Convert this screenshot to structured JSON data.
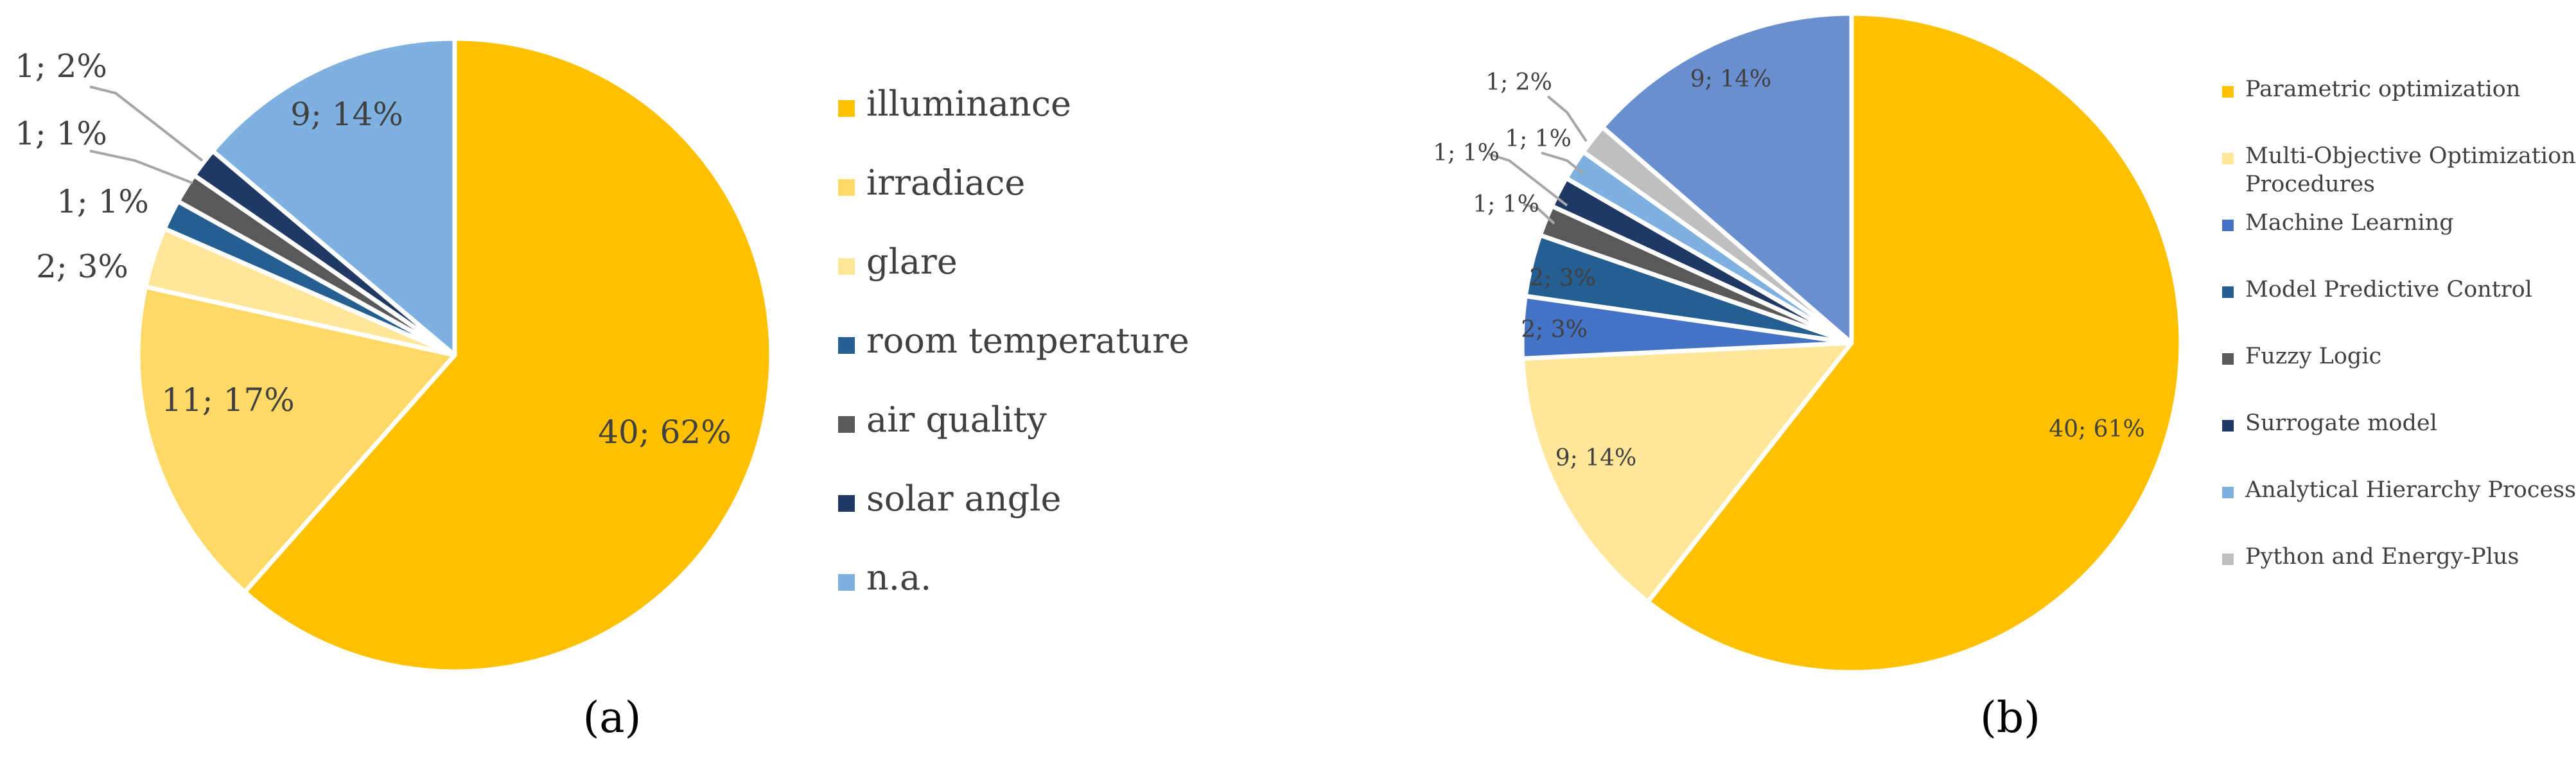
{
  "chart_data": [
    {
      "type": "pie",
      "panel_label": "(a)",
      "legend_position": "right",
      "slices": [
        {
          "label": "illuminance",
          "count": 40,
          "percent": "62%",
          "data_label": "40; 62%",
          "color": "#FFC000"
        },
        {
          "label": "irradiace",
          "count": 11,
          "percent": "17%",
          "data_label": "11; 17%",
          "color": "#FFD966"
        },
        {
          "label": "glare",
          "count": 2,
          "percent": "3%",
          "data_label": "2; 3%",
          "color": "#FFE699"
        },
        {
          "label": "room temperature",
          "count": 1,
          "percent": "1%",
          "data_label": "1; 1%",
          "color": "#255E91"
        },
        {
          "label": "air quality",
          "count": 1,
          "percent": "1%",
          "data_label": "1; 1%",
          "color": "#595959"
        },
        {
          "label": "solar angle",
          "count": 1,
          "percent": "2%",
          "data_label": "1; 2%",
          "color": "#203864"
        },
        {
          "label": "n.a.",
          "count": 9,
          "percent": "14%",
          "data_label": "9; 14%",
          "color": "#7FB1E0"
        }
      ]
    },
    {
      "type": "pie",
      "panel_label": "(b)",
      "legend_position": "right",
      "slices": [
        {
          "label": "Parametric optimization",
          "count": 40,
          "percent": "61%",
          "data_label": "40; 61%",
          "color": "#FFC000"
        },
        {
          "label": "Multi-Objective Optimization Procedures",
          "count": 9,
          "percent": "14%",
          "data_label": "9; 14%",
          "color": "#FFE699"
        },
        {
          "label": "Machine Learning",
          "count": 2,
          "percent": "3%",
          "data_label": "2; 3%",
          "color": "#4472C4"
        },
        {
          "label": "Model Predictive Control",
          "count": 2,
          "percent": "3%",
          "data_label": "2; 3%",
          "color": "#255E91"
        },
        {
          "label": "Fuzzy Logic",
          "count": 1,
          "percent": "1%",
          "data_label": "1; 1%",
          "color": "#595959"
        },
        {
          "label": "Surrogate model",
          "count": 1,
          "percent": "1%",
          "data_label": "1; 1%",
          "color": "#203864"
        },
        {
          "label": "Analytical Hierarchy Process",
          "count": 1,
          "percent": "1%",
          "data_label": "1; 1%",
          "color": "#7FB1E0"
        },
        {
          "label": "Python and Energy-Plus",
          "count": 1,
          "percent": "2%",
          "data_label": "1; 2%",
          "color": "#BFBFBF"
        },
        {
          "label": "",
          "count": 9,
          "percent": "14%",
          "data_label": "9; 14%",
          "color": "#6A8FD0"
        }
      ]
    }
  ]
}
